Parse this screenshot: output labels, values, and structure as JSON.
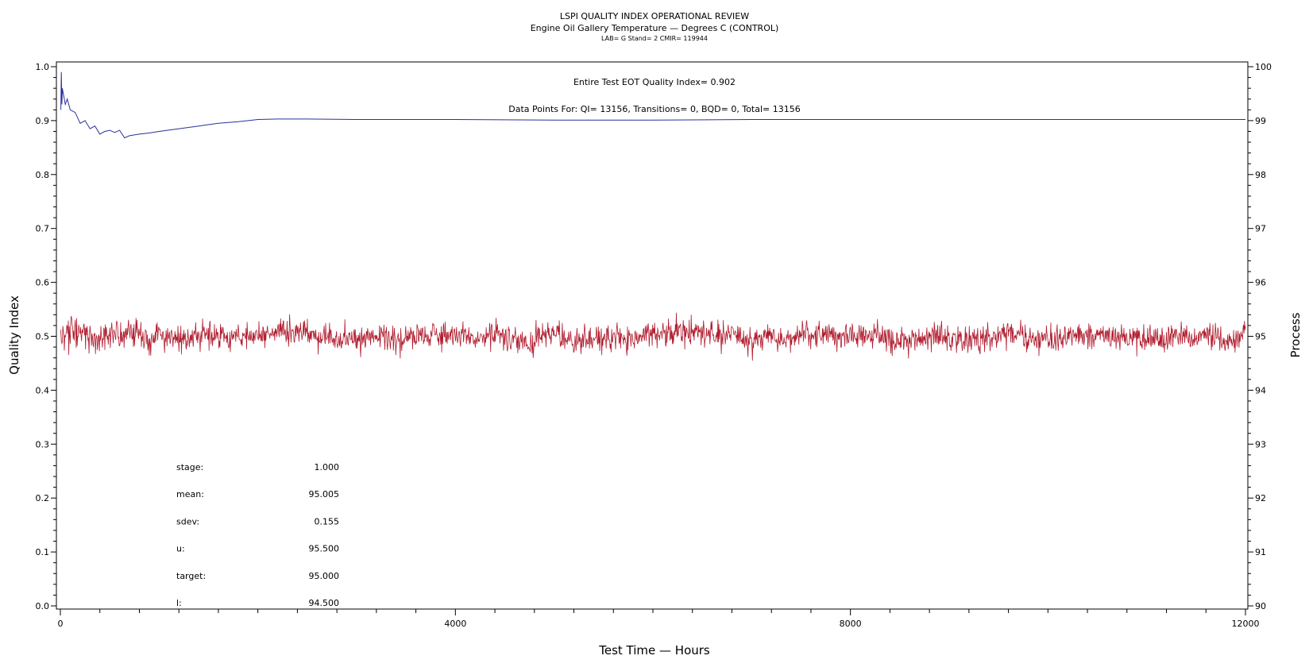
{
  "chart_data": {
    "type": "line",
    "title": "LSPI QUALITY INDEX OPERATIONAL REVIEW",
    "subtitle": "Engine Oil Gallery Temperature — Degrees C (CONTROL)",
    "subtitle2": "LAB= G Stand= 2 CMIR= 119944",
    "xlabel": "Test Time — Hours",
    "ylabel_left": "Quality Index",
    "ylabel_right": "Process",
    "xlim": [
      0,
      12000
    ],
    "ylim_left": [
      0,
      1.0
    ],
    "ylim_right": [
      90,
      100
    ],
    "x_ticks": [
      "0",
      "4000",
      "8000",
      "12000"
    ],
    "y_ticks_left": [
      "0.0",
      "0.1",
      "0.2",
      "0.3",
      "0.4",
      "0.5",
      "0.6",
      "0.7",
      "0.8",
      "0.9",
      "1.0"
    ],
    "y_ticks_right": [
      "90",
      "91",
      "92",
      "93",
      "94",
      "95",
      "96",
      "97",
      "98",
      "99",
      "100"
    ],
    "annotation_qi": "Entire Test EOT Quality Index=   0.902",
    "annotation_points": "Data Points For: QI= 13156, Transitions=      0, BQD=      0, Total= 13156",
    "stats": [
      {
        "label": "stage:",
        "value": "1.000"
      },
      {
        "label": "mean:",
        "value": "95.005"
      },
      {
        "label": "sdev:",
        "value": "0.155"
      },
      {
        "label": "u:",
        "value": "95.500"
      },
      {
        "label": "target:",
        "value": "95.000"
      },
      {
        "label": "l:",
        "value": "94.500"
      }
    ],
    "series": [
      {
        "axis": "left",
        "color": "#2b2f9a",
        "x": [
          5,
          10,
          15,
          20,
          30,
          40,
          50,
          70,
          100,
          150,
          200,
          250,
          300,
          350,
          400,
          450,
          500,
          550,
          600,
          650,
          700,
          800,
          900,
          1000,
          1200,
          1400,
          1600,
          1800,
          2000,
          2200,
          2500,
          3000,
          3500,
          4000,
          5000,
          6000,
          7000,
          8000,
          9000,
          10000,
          11000,
          12000
        ],
        "values": [
          0.92,
          0.99,
          0.93,
          0.96,
          0.95,
          0.94,
          0.93,
          0.94,
          0.92,
          0.915,
          0.895,
          0.9,
          0.885,
          0.89,
          0.875,
          0.88,
          0.882,
          0.878,
          0.882,
          0.868,
          0.872,
          0.875,
          0.877,
          0.88,
          0.885,
          0.89,
          0.895,
          0.898,
          0.902,
          0.903,
          0.903,
          0.902,
          0.902,
          0.902,
          0.901,
          0.901,
          0.902,
          0.902,
          0.902,
          0.902,
          0.902,
          0.902
        ]
      },
      {
        "axis": "right",
        "color": "#b01c2e",
        "points": 13156,
        "mean": 95.005,
        "sdev": 0.155,
        "min": 94.4,
        "max": 95.7
      }
    ]
  }
}
